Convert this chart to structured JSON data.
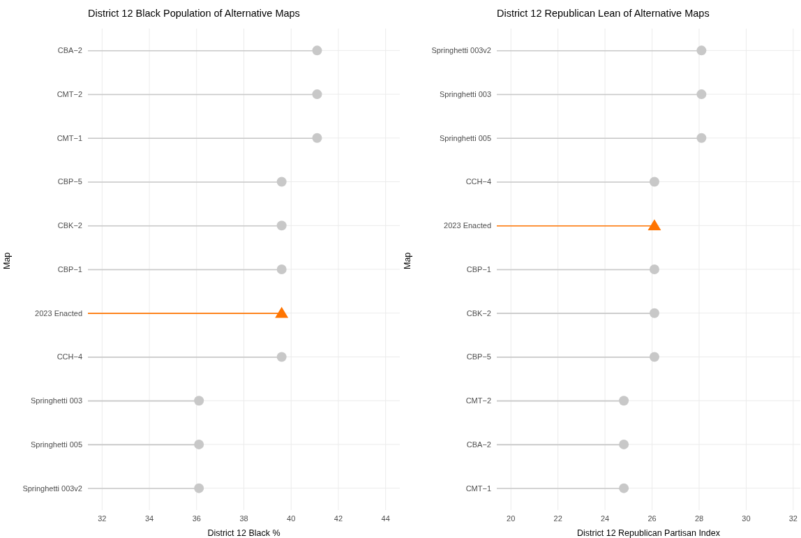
{
  "chart_data": [
    {
      "type": "lollipop",
      "orientation": "horizontal",
      "title": "District 12 Black Population of Alternative Maps",
      "xlabel": "District 12 Black %",
      "ylabel": "Map",
      "categories": [
        "CBA−2",
        "CMT−2",
        "CMT−1",
        "CBP−5",
        "CBK−2",
        "CBP−1",
        "2023 Enacted",
        "CCH−4",
        "Springhetti 003",
        "Springhetti 005",
        "Springhetti 003v2"
      ],
      "series": [
        {
          "color": "#c8c8c8",
          "marker": "circle",
          "values": [
            41.1,
            41.1,
            41.1,
            39.6,
            39.6,
            39.6,
            null,
            39.6,
            36.1,
            36.1,
            36.1
          ]
        },
        {
          "color": "#ff7400",
          "marker": "triangle",
          "values": [
            null,
            null,
            null,
            null,
            null,
            null,
            39.6,
            null,
            null,
            null,
            null
          ]
        }
      ],
      "xlim": [
        31.4,
        44.6
      ],
      "xticks": [
        32,
        34,
        36,
        38,
        40,
        42,
        44
      ],
      "grid": true
    },
    {
      "type": "lollipop",
      "orientation": "horizontal",
      "title": "District 12 Republican Lean of Alternative Maps",
      "xlabel": "District 12 Republican Partisan Index",
      "ylabel": "Map",
      "categories": [
        "Springhetti 003v2",
        "Springhetti 003",
        "Springhetti 005",
        "CCH−4",
        "2023 Enacted",
        "CBP−1",
        "CBK−2",
        "CBP−5",
        "CMT−2",
        "CBA−2",
        "CMT−1"
      ],
      "series": [
        {
          "color": "#c8c8c8",
          "marker": "circle",
          "values": [
            28.1,
            28.1,
            28.1,
            26.1,
            null,
            26.1,
            26.1,
            26.1,
            24.8,
            24.8,
            24.8
          ]
        },
        {
          "color": "#ff7400",
          "marker": "triangle",
          "values": [
            null,
            null,
            null,
            null,
            26.1,
            null,
            null,
            null,
            null,
            null,
            null
          ]
        }
      ],
      "xlim": [
        19.4,
        32.3
      ],
      "xticks": [
        20,
        22,
        24,
        26,
        28,
        30,
        32
      ],
      "grid": true
    }
  ]
}
